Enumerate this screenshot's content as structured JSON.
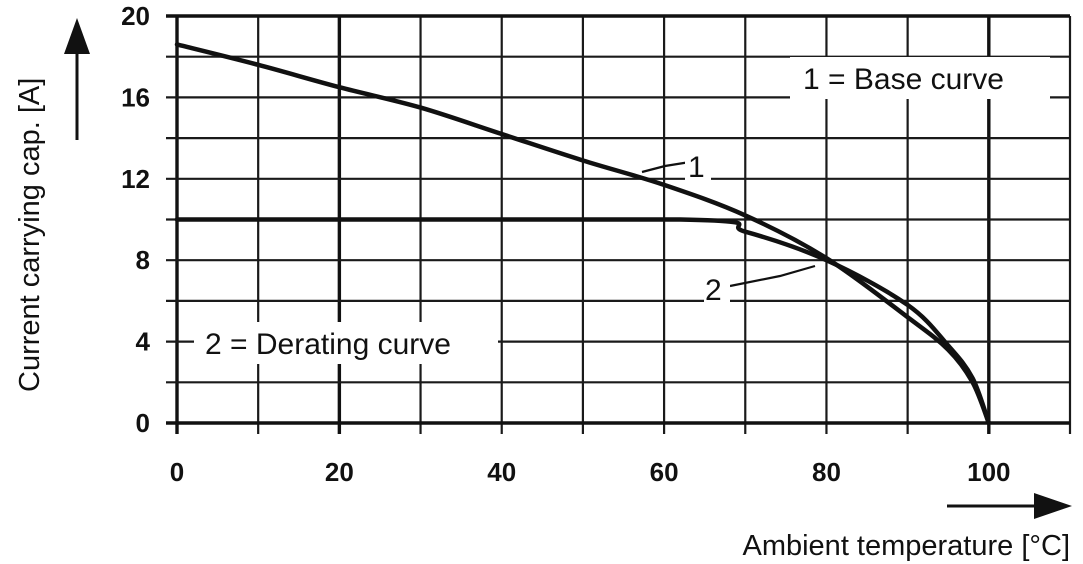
{
  "chart_data": {
    "type": "line",
    "ylabel": "Current carrying cap. [A]",
    "xlabel": "Ambient temperature [°C]",
    "xlim": [
      0,
      110
    ],
    "ylim": [
      0,
      20
    ],
    "x_ticks": [
      "0",
      "20",
      "40",
      "60",
      "80",
      "100"
    ],
    "y_ticks": [
      "0",
      "4",
      "8",
      "12",
      "16",
      "20"
    ],
    "grid": true,
    "legend": [
      {
        "id": "1",
        "text": "1 = Base curve",
        "placement": "top-right"
      },
      {
        "id": "2",
        "text": "2 = Derating curve",
        "placement": "bottom-left"
      }
    ],
    "series": [
      {
        "name": "1",
        "x": [
          0,
          10,
          20,
          30,
          40,
          50,
          60,
          70,
          80,
          90,
          95,
          98,
          100
        ],
        "y": [
          18.6,
          17.6,
          16.5,
          15.5,
          14.2,
          12.9,
          11.7,
          10.2,
          8.1,
          5.2,
          3.6,
          2.0,
          0
        ]
      },
      {
        "name": "2",
        "x": [
          0,
          62,
          70,
          80,
          90,
          95,
          98,
          100
        ],
        "y": [
          10,
          10,
          9.4,
          8.0,
          5.8,
          3.8,
          2.2,
          0
        ]
      }
    ],
    "annotations": [
      {
        "text": "1",
        "x": 64,
        "y": 12.0
      },
      {
        "text": "2",
        "x": 79,
        "y": 7.9
      }
    ]
  }
}
